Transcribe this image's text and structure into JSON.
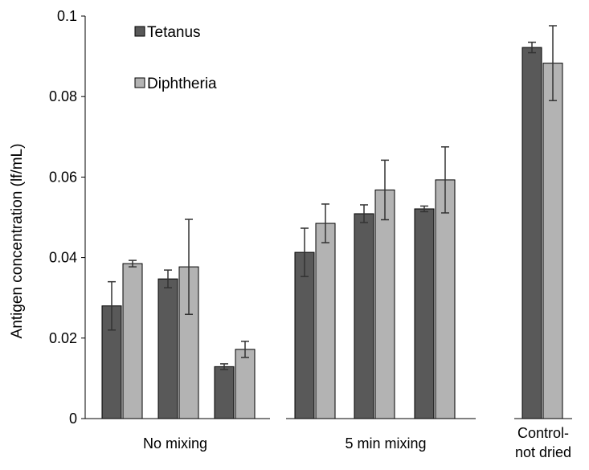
{
  "chart_data": {
    "type": "bar",
    "title": "",
    "xlabel": "",
    "ylabel": "Antigen concentration  (lf/mL)",
    "ylim": [
      0,
      0.1
    ],
    "yticks": [
      "0",
      "0.02",
      "0.04",
      "0.06",
      "0.08",
      "0.1"
    ],
    "yticks_values": [
      0,
      0.02,
      0.04,
      0.06,
      0.08,
      0.1
    ],
    "grid": false,
    "legend_position": "top-left",
    "groups": [
      {
        "label": [
          "No mixing"
        ],
        "bars": 3
      },
      {
        "label": [
          "5 min mixing"
        ],
        "bars": 3
      },
      {
        "label": [
          "Control-",
          "not dried"
        ],
        "bars": 1
      }
    ],
    "series": [
      {
        "name": "Tetanus",
        "color": "#595959",
        "values": [
          0.028,
          0.0347,
          0.0129,
          0.0413,
          0.0509,
          0.0521,
          0.0922
        ],
        "errors": [
          0.006,
          0.0022,
          0.0007,
          0.006,
          0.0022,
          0.0007,
          0.0013
        ]
      },
      {
        "name": "Diphtheria",
        "color": "#b3b3b3",
        "values": [
          0.0385,
          0.0377,
          0.0172,
          0.0485,
          0.0568,
          0.0593,
          0.0883
        ],
        "errors": [
          0.0008,
          0.0118,
          0.002,
          0.0048,
          0.0074,
          0.0082,
          0.0093
        ]
      }
    ]
  }
}
